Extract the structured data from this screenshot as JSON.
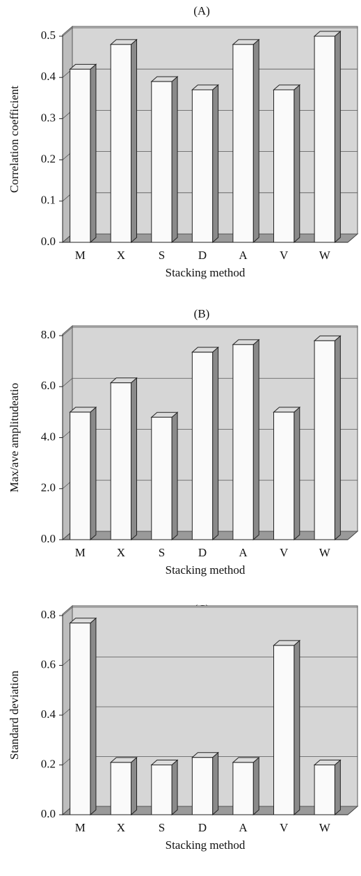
{
  "chart_data": [
    {
      "type": "bar3d",
      "title": "(A)",
      "x_label": "Stacking method",
      "y_label": "Correlation coefficient",
      "categories": [
        "M",
        "X",
        "S",
        "D",
        "A",
        "V",
        "W"
      ],
      "values": [
        0.42,
        0.48,
        0.39,
        0.37,
        0.48,
        0.37,
        0.5
      ],
      "ylim": [
        0,
        0.5
      ],
      "yticks": [
        {
          "value": 0,
          "label": "0.0"
        },
        0.1,
        0.2,
        0.3,
        0.4,
        0.5
      ],
      "grid": true,
      "color": "#fafafa"
    },
    {
      "type": "bar3d",
      "title": "(B)",
      "x_label": "Stacking method",
      "y_label": "Max/ave amplitudeatio",
      "categories": [
        "M",
        "X",
        "S",
        "D",
        "A",
        "V",
        "W"
      ],
      "values": [
        5.0,
        6.15,
        4.8,
        7.35,
        7.65,
        5.0,
        7.8
      ],
      "ylim": [
        0,
        8
      ],
      "yticks": [
        {
          "value": 0,
          "label": "0.0"
        },
        {
          "value": 2,
          "label": "2.0"
        },
        {
          "value": 4,
          "label": "4.0"
        },
        {
          "value": 6,
          "label": "6.0"
        },
        {
          "value": 8,
          "label": "8.0"
        }
      ],
      "grid": true,
      "color": "#fafafa"
    },
    {
      "type": "bar3d",
      "title": "(C)",
      "x_label": "Stacking method",
      "y_label": "Standard deviation",
      "categories": [
        "M",
        "X",
        "S",
        "D",
        "A",
        "V",
        "W"
      ],
      "values": [
        0.77,
        0.21,
        0.2,
        0.23,
        0.21,
        0.68,
        0.2
      ],
      "ylim": [
        0,
        0.8
      ],
      "yticks": [
        {
          "value": 0,
          "label": "0.0"
        },
        0.2,
        0.4,
        0.6,
        0.8
      ],
      "grid": true,
      "color": "#fafafa"
    }
  ]
}
